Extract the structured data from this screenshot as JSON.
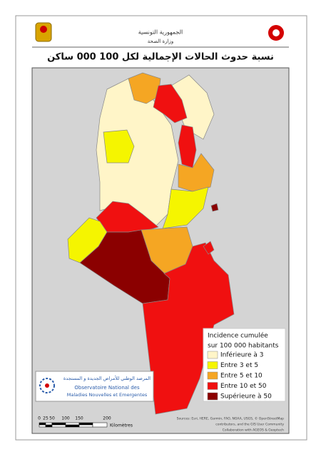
{
  "header": {
    "republic": "الجمهورية التونسية",
    "ministry": "وزارة الصحة"
  },
  "title": "نسبة حدوث الحالات الإجمالية لكل 100 000 ساكن",
  "legend": {
    "title": "Incidence cumulée",
    "subtitle": "sur 100 000 habitants",
    "items": [
      {
        "label": "Inférieure à 3",
        "color": "#fff5c8"
      },
      {
        "label": "Entre 3 et 5",
        "color": "#f5f500"
      },
      {
        "label": "Entre 5 et 10",
        "color": "#f5a623"
      },
      {
        "label": "Entre 10 et 50",
        "color": "#f01010"
      },
      {
        "label": "Supérieure à 50",
        "color": "#8b0000"
      }
    ]
  },
  "logo": {
    "arabic": "المرصد الوطني للأمراض الجديدة و المستجدة",
    "line1": "Observatoire National des",
    "line2": "Maladies Nouvelles et Emergentes"
  },
  "scale": {
    "ticks": [
      "0",
      "25",
      "50",
      "100",
      "150",
      "200"
    ],
    "unit": "Kilomètres"
  },
  "sources": [
    "Sources: Esri, HERE, Garmin, FAO, NOAA, USGS, © OpenStreetMap",
    "contributors, and the GIS User Community",
    "Collaboration with AGEOS & Geoptech"
  ]
}
